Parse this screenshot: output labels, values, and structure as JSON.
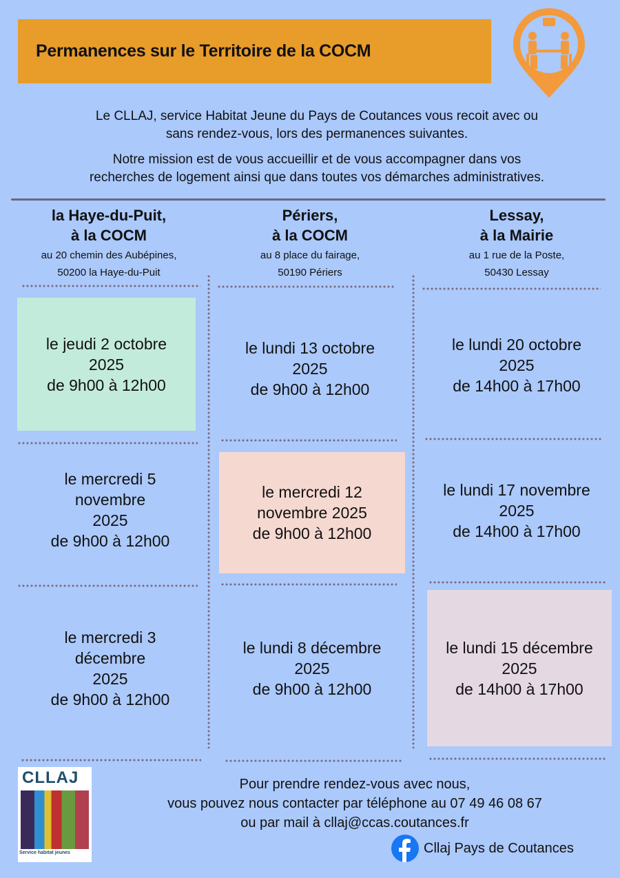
{
  "header": {
    "title": "Permanences sur le Territoire de la COCM",
    "icon": "location-pin-meeting-icon",
    "accent": "#e89c2a"
  },
  "intro": {
    "line1": "Le CLLAJ, service Habitat Jeune du Pays de Coutances vous recoit avec ou",
    "line2": "sans rendez-vous, lors des permanences suivantes.",
    "line3": "Notre mission est de vous accueillir et de vous accompagner dans vos",
    "line4": "recherches  de logement ainsi que dans toutes vos démarches administratives."
  },
  "locations": [
    {
      "name1": "la Haye-du-Puit,",
      "name2": "à la COCM",
      "addr1": "au 20 chemin des Aubépines,",
      "addr2": "50200  la Haye-du-Puit",
      "dates": [
        {
          "l1": "le jeudi 2 octobre",
          "l2": "2025",
          "l3": "de 9h00 à 12h00"
        },
        {
          "l1": "le mercredi 5",
          "l2": "novembre",
          "l3": "2025",
          "l4": "de 9h00 à 12h00"
        },
        {
          "l1": "le mercredi 3",
          "l2": "décembre",
          "l3": "2025",
          "l4": "de 9h00 à 12h00"
        }
      ]
    },
    {
      "name1": "Périers,",
      "name2": "à la COCM",
      "addr1": "au 8 place du fairage,",
      "addr2": "50190 Périers",
      "dates": [
        {
          "l1": "le lundi 13 octobre",
          "l2": "2025",
          "l3": "de 9h00 à 12h00"
        },
        {
          "l1": "le mercredi 12",
          "l2": "novembre 2025",
          "l3": "de 9h00 à 12h00"
        },
        {
          "l1": "le lundi 8 décembre",
          "l2": "2025",
          "l3": "de 9h00 à 12h00"
        }
      ]
    },
    {
      "name1": "Lessay,",
      "name2": "à la Mairie",
      "addr1": "au 1 rue de la Poste,",
      "addr2": "50430 Lessay",
      "dates": [
        {
          "l1": "le lundi 20 octobre",
          "l2": "2025",
          "l3": "de 14h00 à 17h00"
        },
        {
          "l1": "le lundi 17 novembre",
          "l2": "2025",
          "l3": "de 14h00 à 17h00"
        },
        {
          "l1": "le lundi 15 décembre",
          "l2": "2025",
          "l3": "de 14h00 à 17h00"
        }
      ]
    }
  ],
  "highlight_colors": {
    "green": "#c3ebdc",
    "pink": "#f5d9d1",
    "mauve": "#e4d8e3"
  },
  "footer": {
    "line1": "Pour prendre rendez-vous avec nous,",
    "line2": "vous pouvez nous contacter par téléphone au 07 49 46 08 67",
    "line3": "ou par mail à cllaj@ccas.coutances.fr",
    "facebook": "Cllaj Pays de Coutances",
    "logo_text": "CLLAJ du Pays de Coutances — Service habitat jeunes"
  }
}
